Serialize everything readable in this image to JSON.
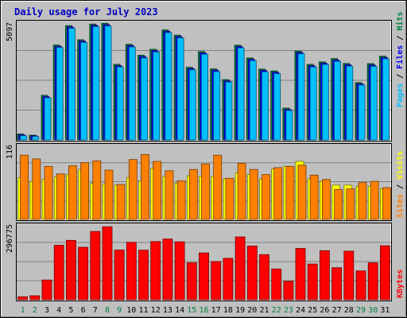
{
  "chart_data": {
    "type": "bar",
    "title": "Daily usage for July 2023",
    "categories": [
      "1",
      "2",
      "3",
      "4",
      "5",
      "6",
      "7",
      "8",
      "9",
      "10",
      "11",
      "12",
      "13",
      "14",
      "15",
      "16",
      "17",
      "18",
      "19",
      "20",
      "21",
      "22",
      "23",
      "24",
      "25",
      "26",
      "27",
      "28",
      "29",
      "30",
      "31"
    ],
    "weekend_days": [
      1,
      2,
      8,
      9,
      15,
      16,
      22,
      23,
      29,
      30
    ],
    "panels": [
      {
        "id": "top",
        "ymax_label": "5097",
        "ymax": 5097,
        "series": [
          {
            "name": "Hits",
            "color": "#008040",
            "values": [
              260,
              210,
              1960,
              4170,
              5020,
              4400,
              5090,
              5120,
              3320,
              4200,
              3720,
              3980,
              4830,
              4600,
              3190,
              3880,
              3120,
              2650,
              4160,
              3600,
              3110,
              3030,
              1400,
              3900,
              3320,
              3430,
              3570,
              3360,
              2520,
              3350,
              3680
            ]
          },
          {
            "name": "Files",
            "color": "#0000ff",
            "values": [
              220,
              180,
              1900,
              4110,
              4960,
              4340,
              5030,
              5060,
              3260,
              4140,
              3660,
              3920,
              4770,
              4540,
              3130,
              3820,
              3060,
              2590,
              4100,
              3540,
              3050,
              2970,
              1340,
              3840,
              3260,
              3370,
              3510,
              3300,
              2460,
              3290,
              3620
            ]
          },
          {
            "name": "Pages",
            "color": "#00c0ff",
            "values": [
              180,
              150,
              1850,
              4060,
              4900,
              4280,
              4970,
              5000,
              3200,
              4080,
              3600,
              3860,
              4710,
              4480,
              3080,
              3760,
              3000,
              2540,
              4040,
              3480,
              2990,
              2910,
              1290,
              3780,
              3200,
              3310,
              3450,
              3240,
              2410,
              3230,
              3560
            ]
          }
        ]
      },
      {
        "id": "middle",
        "ymax_label": "116",
        "ymax": 116,
        "series": [
          {
            "name": "Visits",
            "color": "#ffff00",
            "values": [
              67,
              61,
              64,
              68,
              72,
              80,
              58,
              57,
              55,
              67,
              62,
              82,
              69,
              58,
              70,
              69,
              69,
              65,
              75,
              72,
              65,
              81,
              85,
              93,
              65,
              61,
              55,
              55,
              53,
              53,
              49
            ]
          },
          {
            "name": "Sites",
            "color": "#ff8000",
            "values": [
              103,
              97,
              85,
              73,
              86,
              91,
              94,
              79,
              56,
              96,
              104,
              93,
              78,
              62,
              80,
              89,
              103,
              66,
              90,
              80,
              72,
              83,
              85,
              87,
              71,
              64,
              48,
              49,
              59,
              61,
              51
            ]
          }
        ]
      },
      {
        "id": "bottom",
        "ymax_label": "296775",
        "ymax": 296775,
        "series": [
          {
            "name": "KBytes",
            "color": "#ff0000",
            "values": [
              12000,
              16000,
              80000,
              221000,
              241000,
              213000,
              277000,
              296000,
              202000,
              233000,
              201000,
              236000,
              246000,
              235000,
              150000,
              190000,
              155000,
              168000,
              255000,
              218000,
              183000,
              125000,
              75000,
              208000,
              145000,
              199000,
              130000,
              197000,
              117000,
              150000,
              219000
            ]
          }
        ]
      }
    ]
  }
}
